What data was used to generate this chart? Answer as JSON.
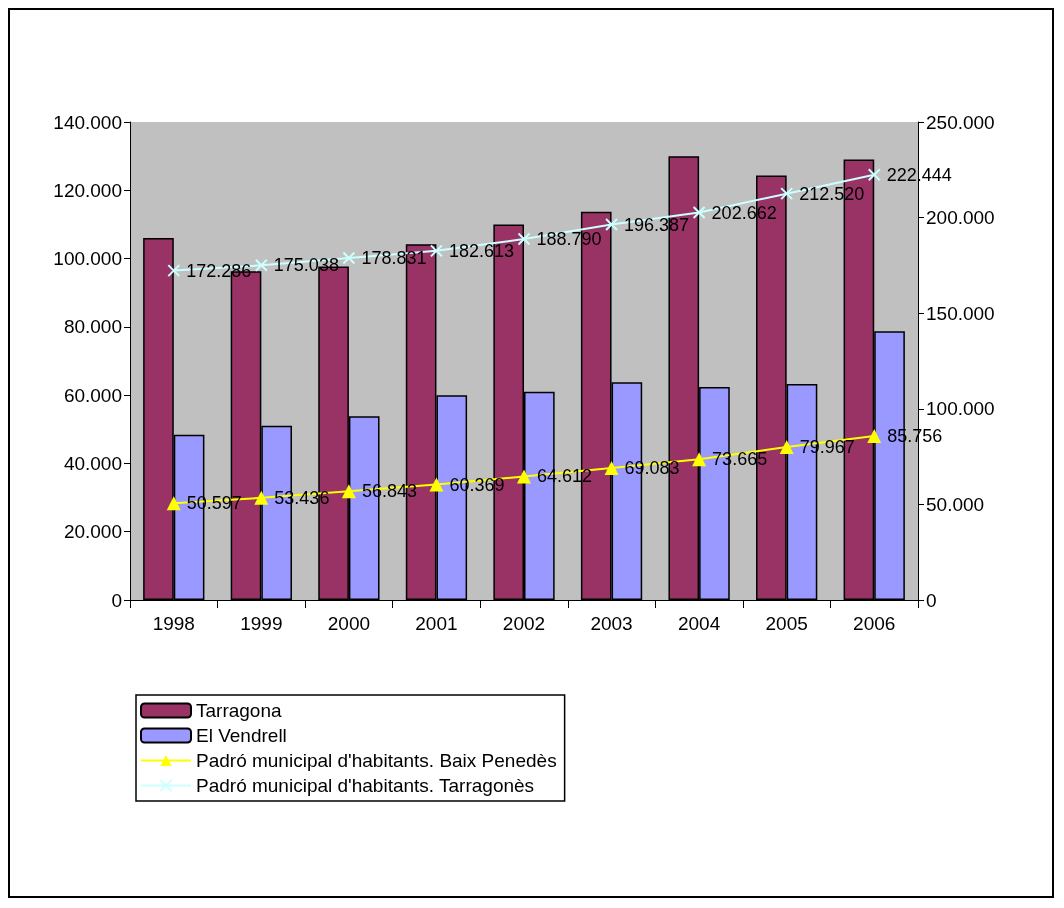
{
  "chart_data": {
    "type": "bar",
    "categories": [
      "1998",
      "1999",
      "2000",
      "2001",
      "2002",
      "2003",
      "2004",
      "2005",
      "2006"
    ],
    "series": [
      {
        "name": "Tarragona",
        "color": "#993366",
        "values": [
          106000,
          96300,
          97700,
          104200,
          110000,
          113700,
          130000,
          124300,
          129000
        ]
      },
      {
        "name": "El Vendrell",
        "color": "#9999ff",
        "values": [
          48400,
          51000,
          53800,
          60000,
          61000,
          63800,
          62400,
          63300,
          78700
        ]
      },
      {
        "name": "Padró municipal d'habitants. Baix Penedès",
        "type": "line",
        "axis": "y2",
        "marker": "triangle",
        "line_style": "solid",
        "color": "#ffff00",
        "values": [
          50597,
          53436,
          56843,
          60369,
          64612,
          69083,
          73665,
          79967,
          85756
        ],
        "value_labels": [
          "50.597",
          "53.436",
          "56.843",
          "60.369",
          "64.612",
          "69.083",
          "73.665",
          "79.967",
          "85.756"
        ]
      },
      {
        "name": "Padró municipal d'habitants. Tarragonès",
        "type": "line",
        "axis": "y2",
        "marker": "cross",
        "line_style": "solid",
        "color": "#ccffff",
        "values": [
          172286,
          175038,
          178831,
          182613,
          188790,
          196387,
          202662,
          212520,
          222444
        ],
        "value_labels": [
          "172.286",
          "175.038",
          "178.831",
          "182.613",
          "188.790",
          "196.387",
          "202.662",
          "212.520",
          "222.444"
        ]
      }
    ],
    "ylim": [
      0,
      140000
    ],
    "yticks": [
      0,
      {
        "value": 20000,
        "label": "20.000"
      },
      {
        "value": 40000,
        "label": "40.000"
      },
      {
        "value": 60000,
        "label": "60.000"
      },
      {
        "value": 80000,
        "label": "80.000"
      },
      {
        "value": 100000,
        "label": "100.000"
      },
      {
        "value": 120000,
        "label": "120.000"
      },
      {
        "value": 140000,
        "label": "140.000"
      }
    ],
    "y2lim": [
      0,
      250000
    ],
    "y2ticks": [
      0,
      {
        "value": 50000,
        "label": "50.000"
      },
      {
        "value": 100000,
        "label": "100.000"
      },
      {
        "value": 150000,
        "label": "150.000"
      },
      {
        "value": 200000,
        "label": "200.000"
      },
      {
        "value": 250000,
        "label": "250.000"
      }
    ],
    "grid": false,
    "legend": "bottom left"
  }
}
